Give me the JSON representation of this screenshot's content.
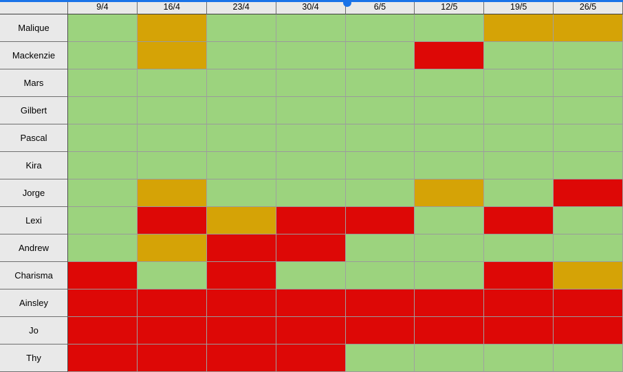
{
  "grid": {
    "corner_label": "",
    "columns": [
      "9/4",
      "16/4",
      "23/4",
      "30/4",
      "6/5",
      "12/5",
      "19/5",
      "26/5"
    ],
    "rows": [
      {
        "name": "Malique",
        "cells": [
          "green",
          "orange",
          "green",
          "green",
          "green",
          "green",
          "orange",
          "orange"
        ]
      },
      {
        "name": "Mackenzie",
        "cells": [
          "green",
          "orange",
          "green",
          "green",
          "green",
          "red",
          "green",
          "green"
        ]
      },
      {
        "name": "Mars",
        "cells": [
          "green",
          "green",
          "green",
          "green",
          "green",
          "green",
          "green",
          "green"
        ]
      },
      {
        "name": "Gilbert",
        "cells": [
          "green",
          "green",
          "green",
          "green",
          "green",
          "green",
          "green",
          "green"
        ]
      },
      {
        "name": "Pascal",
        "cells": [
          "green",
          "green",
          "green",
          "green",
          "green",
          "green",
          "green",
          "green"
        ]
      },
      {
        "name": "Kira",
        "cells": [
          "green",
          "green",
          "green",
          "green",
          "green",
          "green",
          "green",
          "green"
        ]
      },
      {
        "name": "Jorge",
        "cells": [
          "green",
          "orange",
          "green",
          "green",
          "green",
          "orange",
          "green",
          "red"
        ]
      },
      {
        "name": "Lexi",
        "cells": [
          "green",
          "red",
          "orange",
          "red",
          "red",
          "green",
          "red",
          "green"
        ]
      },
      {
        "name": "Andrew",
        "cells": [
          "green",
          "orange",
          "red",
          "red",
          "green",
          "green",
          "green",
          "green"
        ]
      },
      {
        "name": "Charisma",
        "cells": [
          "red",
          "green",
          "red",
          "green",
          "green",
          "green",
          "red",
          "orange"
        ]
      },
      {
        "name": "Ainsley",
        "cells": [
          "red",
          "red",
          "red",
          "red",
          "red",
          "red",
          "red",
          "red"
        ]
      },
      {
        "name": "Jo",
        "cells": [
          "red",
          "red",
          "red",
          "red",
          "red",
          "red",
          "red",
          "red"
        ]
      },
      {
        "name": "Thy",
        "cells": [
          "red",
          "red",
          "red",
          "red",
          "green",
          "green",
          "green",
          "green"
        ]
      }
    ],
    "status_colors": {
      "green": "#9cd37e",
      "orange": "#d5a306",
      "red": "#dd0806"
    },
    "header_background": "#e9e9e9",
    "freeze_indicator_color": "#1a73e8"
  }
}
